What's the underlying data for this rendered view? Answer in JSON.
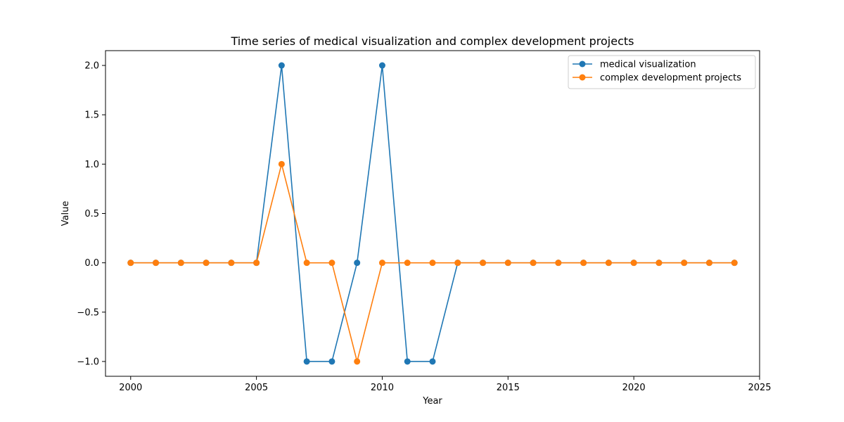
{
  "chart_data": {
    "type": "line",
    "title": "Time series of medical visualization and complex development projects",
    "xlabel": "Year",
    "ylabel": "Value",
    "xlim": [
      1999,
      2025
    ],
    "ylim": [
      -1.15,
      2.15
    ],
    "xticks": [
      2000,
      2005,
      2010,
      2015,
      2020,
      2025
    ],
    "yticks": [
      -1.0,
      -0.5,
      0.0,
      0.5,
      1.0,
      1.5,
      2.0
    ],
    "ytick_labels": [
      "−1.0",
      "−0.5",
      "0.0",
      "0.5",
      "1.0",
      "1.5",
      "2.0"
    ],
    "grid": false,
    "legend_position": "top-right",
    "x": [
      2000,
      2001,
      2002,
      2003,
      2004,
      2005,
      2006,
      2007,
      2008,
      2009,
      2010,
      2011,
      2012,
      2013,
      2014,
      2015,
      2016,
      2017,
      2018,
      2019,
      2020,
      2021,
      2022,
      2023,
      2024
    ],
    "series": [
      {
        "name": "medical visualization",
        "color": "#1f77b4",
        "values": [
          0,
          0,
          0,
          0,
          0,
          0,
          2,
          -1,
          -1,
          0,
          2,
          -1,
          -1,
          0,
          0,
          0,
          0,
          0,
          0,
          0,
          0,
          0,
          0,
          0,
          0
        ]
      },
      {
        "name": "complex development projects",
        "color": "#ff7f0e",
        "values": [
          0,
          0,
          0,
          0,
          0,
          0,
          1,
          0,
          0,
          -1,
          0,
          0,
          0,
          0,
          0,
          0,
          0,
          0,
          0,
          0,
          0,
          0,
          0,
          0,
          0
        ]
      }
    ]
  }
}
